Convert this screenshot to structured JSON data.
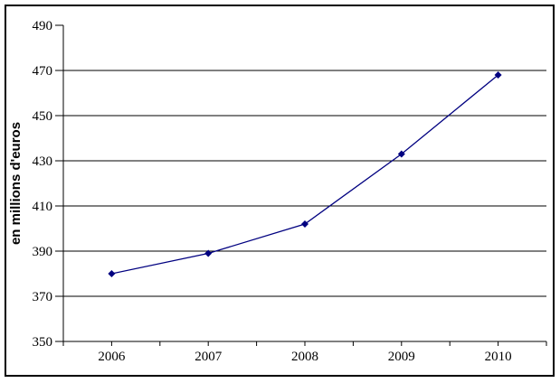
{
  "chart": {
    "background_color": "#ffffff",
    "frame_color": "#000000"
  },
  "chart_data": {
    "type": "line",
    "categories": [
      "2006",
      "2007",
      "2008",
      "2009",
      "2010"
    ],
    "values": [
      380,
      389,
      402,
      433,
      468
    ],
    "title": "",
    "xlabel": "",
    "ylabel": "en millions d'euros",
    "ylim": [
      350,
      490
    ],
    "yticks": [
      350,
      370,
      390,
      410,
      430,
      450,
      470,
      490
    ],
    "ytick_step": 20,
    "grid": true,
    "legend_position": "none",
    "line_color": "#000080",
    "marker": "diamond",
    "marker_color": "#000080",
    "axis_color": "#000000",
    "gridline_color": "#000000"
  }
}
